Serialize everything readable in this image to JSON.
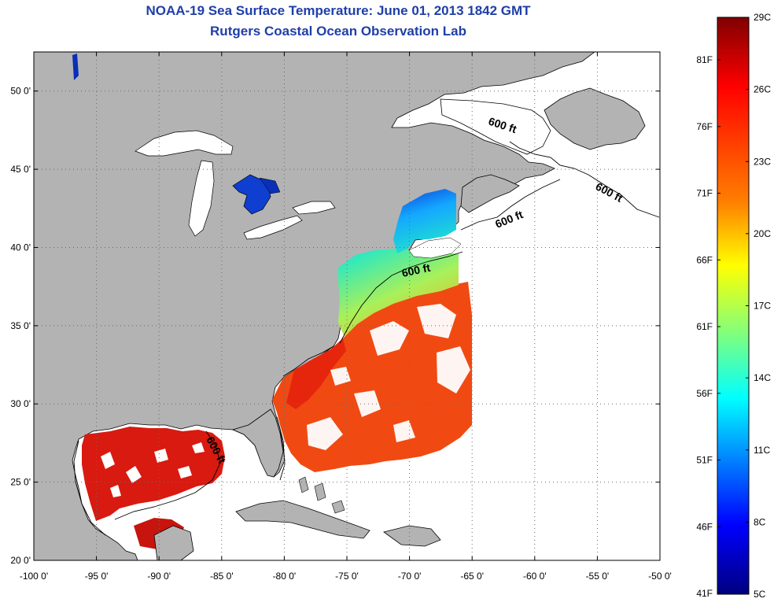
{
  "header": {
    "title": "NOAA-19 Sea Surface Temperature:  June 01, 2013 1842 GMT",
    "subtitle": "Rutgers Coastal Ocean Observation Lab"
  },
  "axes": {
    "lon_labels": [
      "-100 0'",
      "-95 0'",
      "-90 0'",
      "-85 0'",
      "-80 0'",
      "-75 0'",
      "-70 0'",
      "-65 0'",
      "-60 0'",
      "-55 0'",
      "-50 0'"
    ],
    "lon_values": [
      -100,
      -95,
      -90,
      -85,
      -80,
      -75,
      -70,
      -65,
      -60,
      -55,
      -50
    ],
    "lat_labels": [
      "50 0'",
      "45 0'",
      "40 0'",
      "35 0'",
      "30 0'",
      "25 0'",
      "20 0'"
    ],
    "lat_values": [
      50,
      45,
      40,
      35,
      30,
      25,
      20
    ],
    "lon_range": [
      -100,
      -50
    ],
    "lat_range": [
      20,
      52.5
    ]
  },
  "contour_label": "600 ft",
  "colorbar": {
    "celsius_labels": [
      "29C",
      "26C",
      "23C",
      "20C",
      "17C",
      "14C",
      "11C",
      "8C",
      "5C"
    ],
    "fahrenheit_labels": [
      "81F",
      "76F",
      "71F",
      "66F",
      "61F",
      "56F",
      "51F",
      "46F",
      "41F"
    ],
    "colors": [
      "#7f0000",
      "#ff0000",
      "#ff7f00",
      "#ffff00",
      "#7fff7f",
      "#00ffff",
      "#007fff",
      "#0000ff",
      "#00007f"
    ]
  },
  "colors": {
    "land": "#b3b3b3",
    "ocean_nodata": "#ffffff",
    "title": "#1f3fa8"
  }
}
